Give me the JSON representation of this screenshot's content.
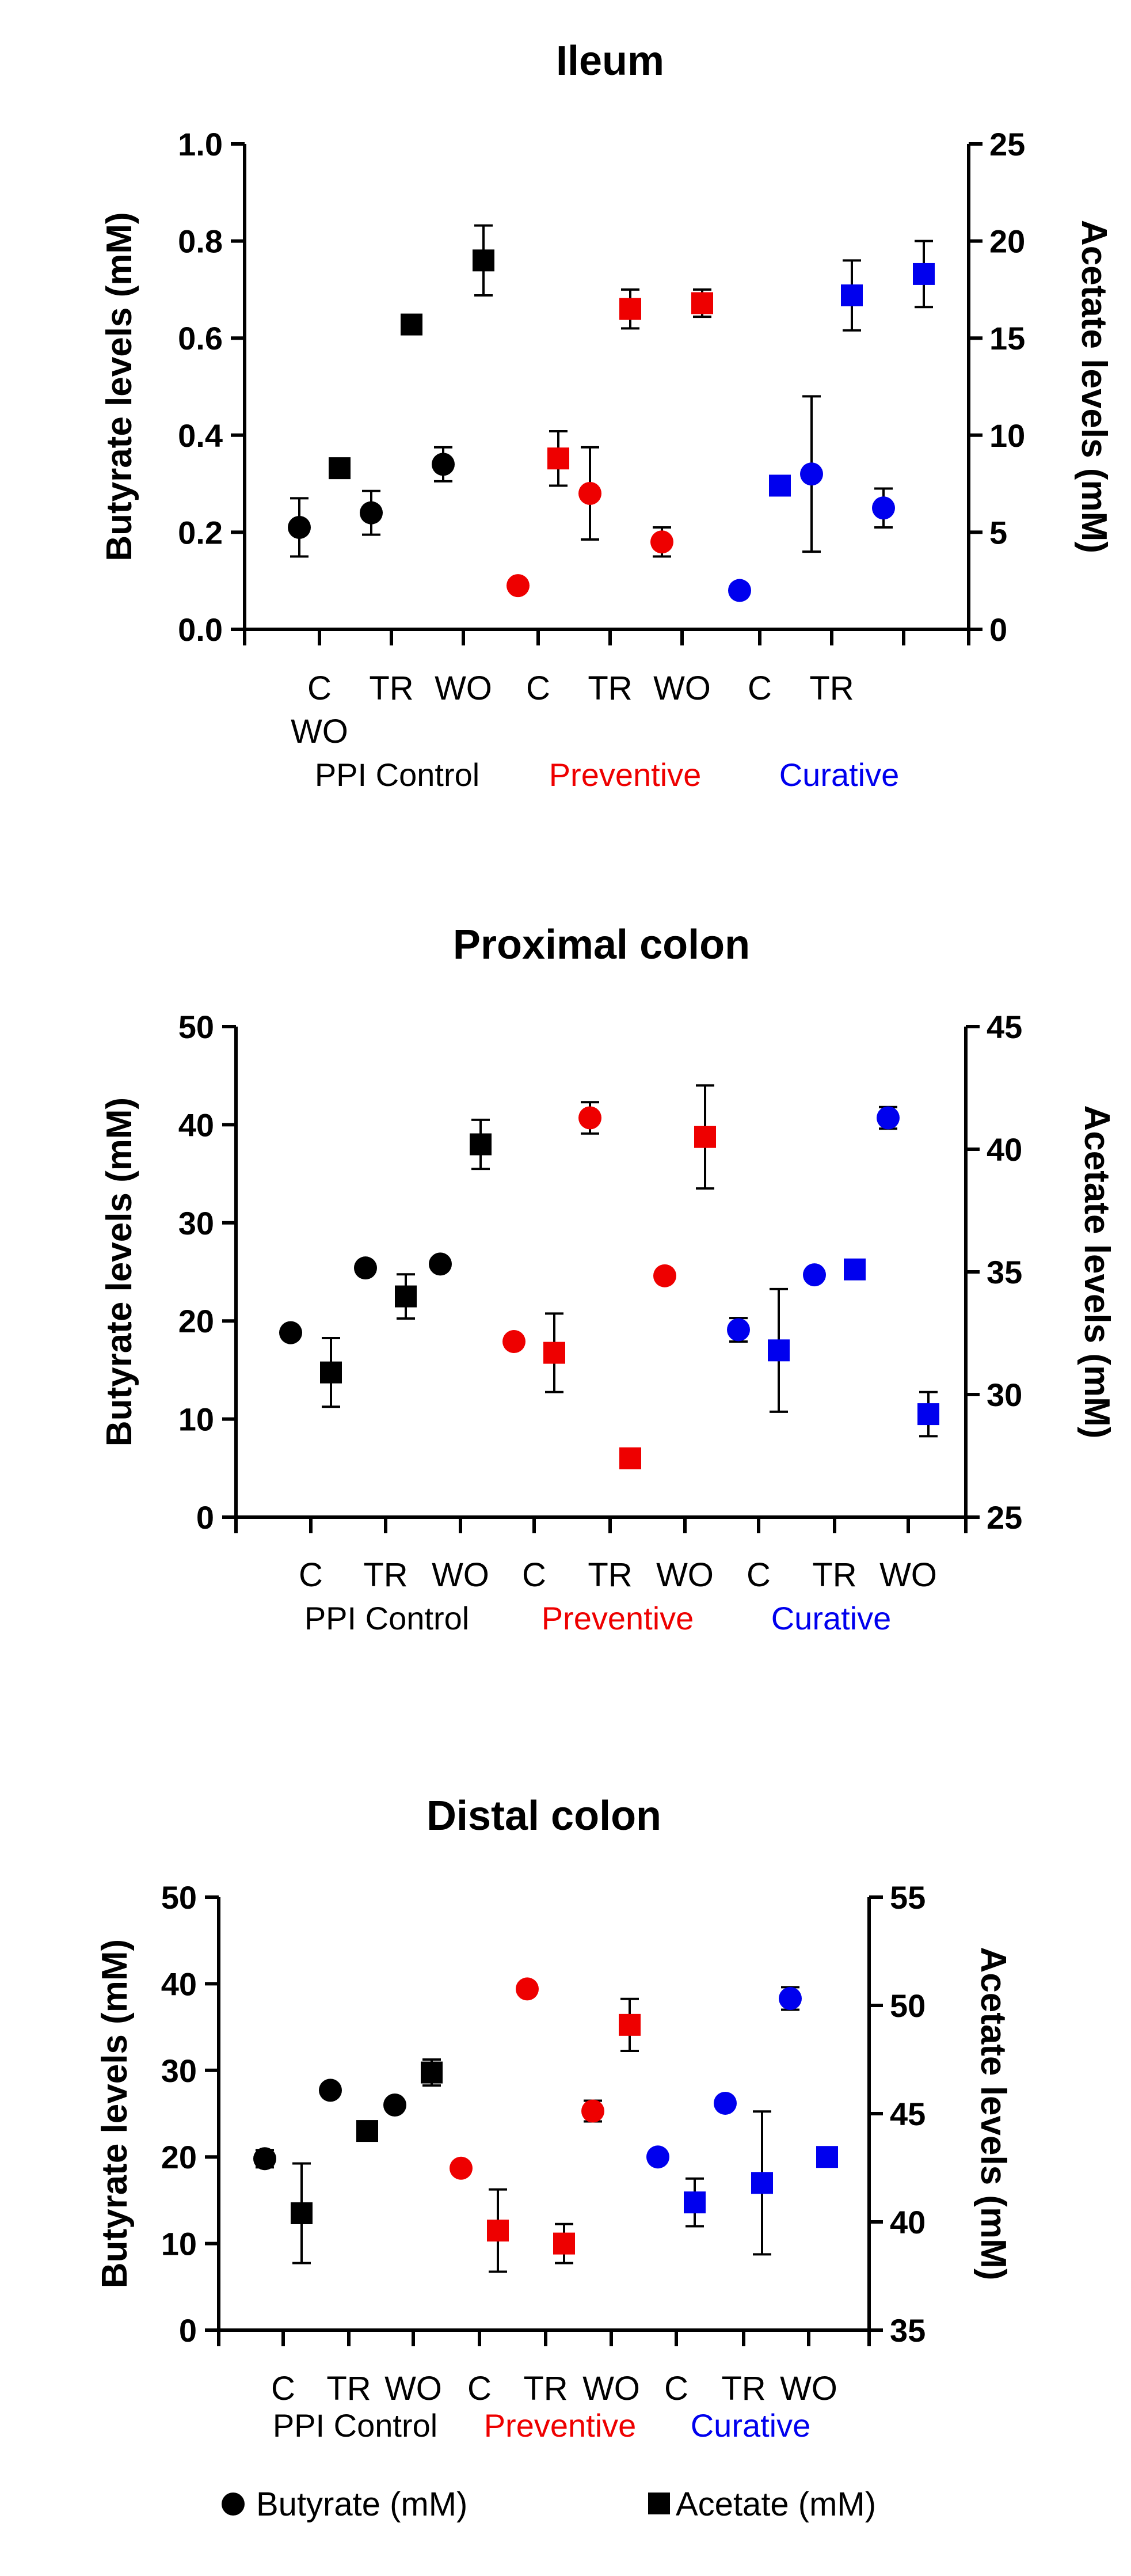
{
  "legend": {
    "butyrate_label": "Butyrate (mM)",
    "acetate_label": "Acetate (mM)"
  },
  "colors": {
    "control": "#000000",
    "preventive": "#ee0000",
    "curative": "#0000ee"
  },
  "chart_data": [
    {
      "type": "scatter",
      "title": "Ileum",
      "ylabel": "Butyrate levels (mM)",
      "y2label": "Acetate levels (mM)",
      "ylim": [
        0,
        1.0
      ],
      "yticks": [
        "0.0",
        "0.2",
        "0.4",
        "0.6",
        "0.8",
        "1.0"
      ],
      "y2lim": [
        0,
        25
      ],
      "y2ticks": [
        "0",
        "5",
        "10",
        "15",
        "20",
        "25"
      ],
      "category_labels": [
        "C",
        "TR",
        "WO",
        "C",
        "TR",
        "WO",
        "C",
        "TR"
      ],
      "category_labels_line2": "WO",
      "groups": [
        "PPI Control",
        "Preventive",
        "Curative"
      ],
      "series": [
        {
          "name": "Butyrate (mM)",
          "marker": "circle",
          "values": [
            0.21,
            0.24,
            0.34,
            0.09,
            0.28,
            0.18,
            0.08,
            0.32,
            0.25
          ],
          "errors": [
            0.06,
            0.045,
            0.035,
            0,
            0.095,
            0.03,
            0,
            0.16,
            0.04
          ],
          "group_index": [
            0,
            0,
            0,
            1,
            1,
            1,
            2,
            2,
            2
          ]
        },
        {
          "name": "Acetate (mM)",
          "marker": "square",
          "values": [
            8.3,
            15.7,
            19.0,
            8.8,
            16.5,
            16.8,
            7.4,
            17.2,
            18.3
          ],
          "errors": [
            0,
            0,
            1.8,
            1.4,
            1.0,
            0.7,
            0,
            1.8,
            1.7
          ],
          "group_index": [
            0,
            0,
            0,
            1,
            1,
            1,
            2,
            2,
            2
          ]
        }
      ]
    },
    {
      "type": "scatter",
      "title": "Proximal colon",
      "ylabel": "Butyrate levels (mM)",
      "y2label": "Acetate levels (mM)",
      "ylim": [
        0,
        50
      ],
      "yticks": [
        "0",
        "10",
        "20",
        "30",
        "40",
        "50"
      ],
      "y2lim": [
        25,
        45
      ],
      "y2ticks": [
        "25",
        "30",
        "35",
        "40",
        "45"
      ],
      "category_labels": [
        "C",
        "TR",
        "WO",
        "C",
        "TR",
        "WO",
        "C",
        "TR",
        "WO"
      ],
      "groups": [
        "PPI Control",
        "Preventive",
        "Curative"
      ],
      "series": [
        {
          "name": "Butyrate (mM)",
          "marker": "circle",
          "values": [
            18.8,
            25.4,
            25.8,
            17.9,
            40.7,
            24.6,
            19.1,
            24.7,
            40.7
          ],
          "errors": [
            0,
            0,
            0,
            0,
            1.6,
            0,
            1.2,
            0,
            1.1
          ],
          "group_index": [
            0,
            0,
            0,
            1,
            1,
            1,
            2,
            2,
            2
          ]
        },
        {
          "name": "Acetate (mM)",
          "marker": "square",
          "values": [
            30.9,
            34.0,
            40.2,
            31.7,
            27.4,
            40.5,
            31.8,
            35.1,
            29.2
          ],
          "errors": [
            1.4,
            0.9,
            1.0,
            1.6,
            0,
            2.1,
            2.5,
            0,
            0.9
          ],
          "group_index": [
            0,
            0,
            0,
            1,
            1,
            1,
            2,
            2,
            2
          ]
        }
      ]
    },
    {
      "type": "scatter",
      "title": "Distal colon",
      "ylabel": "Butyrate levels (mM)",
      "y2label": "Acetate levels (mM)",
      "ylim": [
        0,
        50
      ],
      "yticks": [
        "0",
        "10",
        "20",
        "30",
        "40",
        "50"
      ],
      "y2lim": [
        35,
        55
      ],
      "y2ticks": [
        "35",
        "40",
        "45",
        "50",
        "55"
      ],
      "category_labels": [
        "C",
        "TR",
        "WO",
        "C",
        "TR",
        "WO",
        "C",
        "TR",
        "WO"
      ],
      "groups": [
        "PPI Control",
        "Preventive",
        "Curative"
      ],
      "series": [
        {
          "name": "Butyrate (mM)",
          "marker": "circle",
          "values": [
            19.8,
            27.7,
            26.0,
            18.7,
            39.4,
            25.3,
            20.0,
            26.2,
            38.3
          ],
          "errors": [
            1.0,
            0,
            0,
            0,
            0,
            1.2,
            0,
            0,
            1.3
          ],
          "group_index": [
            0,
            0,
            0,
            1,
            1,
            1,
            2,
            2,
            2
          ]
        },
        {
          "name": "Acetate (mM)",
          "marker": "square",
          "values": [
            40.4,
            44.2,
            46.9,
            39.6,
            39.0,
            49.1,
            40.9,
            41.8,
            43.0
          ],
          "errors": [
            2.3,
            0.4,
            0.6,
            1.9,
            0.9,
            1.2,
            1.1,
            3.3,
            0.2
          ],
          "group_index": [
            0,
            0,
            0,
            1,
            1,
            1,
            2,
            2,
            2
          ]
        }
      ]
    }
  ]
}
